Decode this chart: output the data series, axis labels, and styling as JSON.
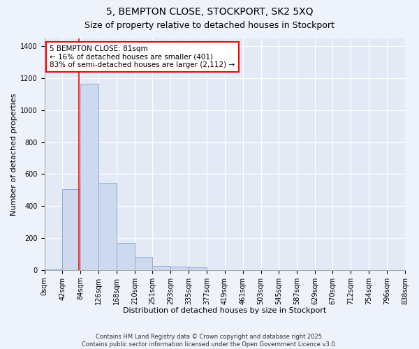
{
  "title": "5, BEMPTON CLOSE, STOCKPORT, SK2 5XQ",
  "subtitle": "Size of property relative to detached houses in Stockport",
  "xlabel": "Distribution of detached houses by size in Stockport",
  "ylabel": "Number of detached properties",
  "footer": "Contains HM Land Registry data © Crown copyright and database right 2025.\nContains public sector information licensed under the Open Government Licence v3.0.",
  "bar_color": "#ccd9ee",
  "bar_edgecolor": "#90aed4",
  "annotation_line1": "5 BEMPTON CLOSE: 81sqm",
  "annotation_line2": "← 16% of detached houses are smaller (401)",
  "annotation_line3": "83% of semi-detached houses are larger (2,112) →",
  "annotation_box_edgecolor": "red",
  "vline_x": 81,
  "vline_color": "red",
  "bin_edges": [
    0,
    42,
    84,
    126,
    168,
    210,
    251,
    293,
    335,
    377,
    419,
    461,
    503,
    545,
    587,
    629,
    670,
    712,
    754,
    796,
    838
  ],
  "bar_heights": [
    5,
    505,
    1165,
    545,
    170,
    80,
    25,
    20,
    15,
    0,
    0,
    0,
    0,
    0,
    0,
    0,
    0,
    0,
    0,
    0
  ],
  "ylim": [
    0,
    1450
  ],
  "yticks": [
    0,
    200,
    400,
    600,
    800,
    1000,
    1200,
    1400
  ],
  "background_color": "#eef2fa",
  "plot_background": "#e4eaf5",
  "title_fontsize": 10,
  "subtitle_fontsize": 9,
  "ylabel_fontsize": 8,
  "xlabel_fontsize": 8,
  "tick_fontsize": 7,
  "footer_fontsize": 6,
  "annotation_fontsize": 7.5
}
